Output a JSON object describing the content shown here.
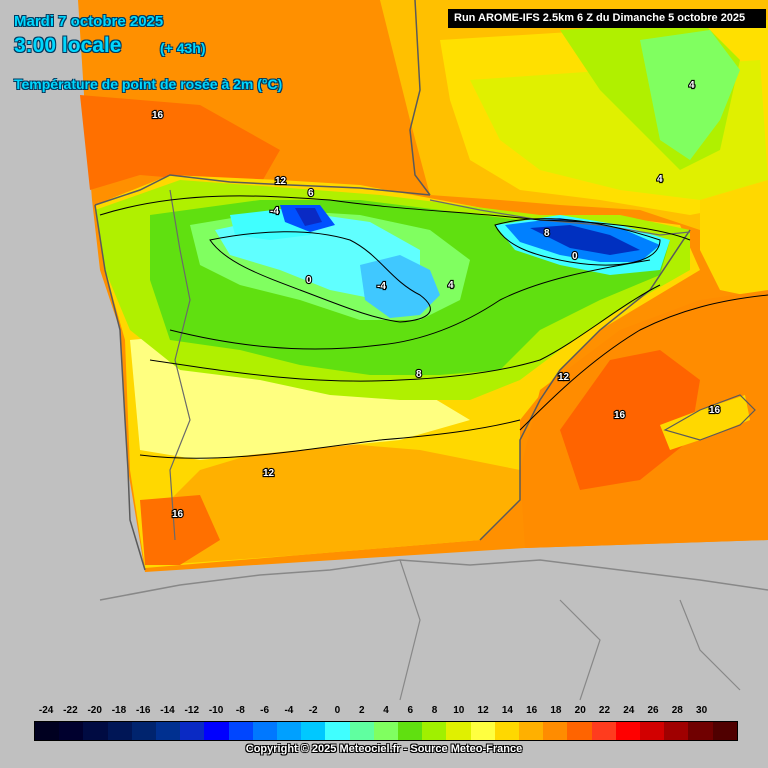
{
  "header": {
    "date": "Mardi 7 octobre 2025",
    "time": "3:00 locale",
    "lead": "(+ 43h)",
    "parameter": "Température de point de rosée à 2m (°C)",
    "run": "Run AROME-IFS 2.5km 6 Z du Dimanche 5 octobre 2025"
  },
  "contour_labels": [
    {
      "text": "16",
      "region": "bay-of-biscay"
    },
    {
      "text": "12",
      "region": "cantabrian-coast"
    },
    {
      "text": "6",
      "region": "cantabrian-coast"
    },
    {
      "text": "-4",
      "region": "cantabrian-mountains"
    },
    {
      "text": "0",
      "region": "castilla-y-leon"
    },
    {
      "text": "-4",
      "region": "iberian-system"
    },
    {
      "text": "4",
      "region": "soria"
    },
    {
      "text": "8",
      "region": "pyrenees"
    },
    {
      "text": "0",
      "region": "pyrenees"
    },
    {
      "text": "4",
      "region": "southern-france"
    },
    {
      "text": "4",
      "region": "southern-france"
    },
    {
      "text": "8",
      "region": "central-spain"
    },
    {
      "text": "12",
      "region": "ebro-delta"
    },
    {
      "text": "16",
      "region": "balearic-sea"
    },
    {
      "text": "16",
      "region": "balearic-islands"
    },
    {
      "text": "12",
      "region": "la-mancha"
    },
    {
      "text": "16",
      "region": "portugal-south"
    }
  ],
  "legend": {
    "values": [
      "-24",
      "-22",
      "-20",
      "-18",
      "-16",
      "-14",
      "-12",
      "-10",
      "-8",
      "-6",
      "-4",
      "-2",
      "0",
      "2",
      "4",
      "6",
      "8",
      "10",
      "12",
      "14",
      "16",
      "18",
      "20",
      "22",
      "24",
      "26",
      "28",
      "30"
    ],
    "colors": [
      "#000020",
      "#00002e",
      "#000b42",
      "#001656",
      "#00246e",
      "#003090",
      "#0a2ac4",
      "#0000ff",
      "#0046ff",
      "#0078ff",
      "#00a0ff",
      "#00c8ff",
      "#40ffff",
      "#60ffa0",
      "#80ff60",
      "#60e010",
      "#a0f000",
      "#e0f000",
      "#ffff40",
      "#ffd800",
      "#ffb000",
      "#ff8c00",
      "#ff6400",
      "#ff3c1e",
      "#ff0000",
      "#d20000",
      "#a00000",
      "#700000",
      "#500000"
    ],
    "copyright": "Copyright © 2025 Meteociel.fr - Source Meteo-France"
  }
}
